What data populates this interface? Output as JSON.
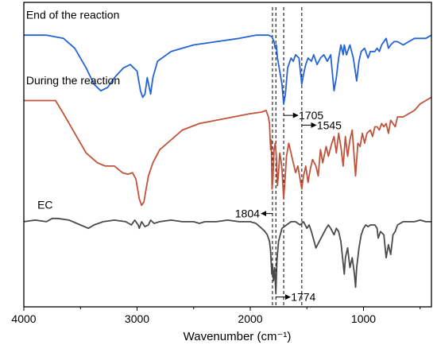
{
  "chart_data": {
    "type": "line",
    "title": "",
    "xlabel": "Wavenumber (cm⁻¹)",
    "ylabel": "",
    "xlim": [
      4000,
      400
    ],
    "x_reversed": true,
    "x_ticks": [
      4000,
      3000,
      2000,
      1000
    ],
    "x_tick_labels": [
      "4000",
      "3000",
      "2000",
      "1000"
    ],
    "grid": false,
    "y_axis_shown": false,
    "legend": "none",
    "series": [
      {
        "name": "End of the reaction",
        "color": "#2563d6",
        "points": [
          [
            4000,
            83
          ],
          [
            3800,
            83
          ],
          [
            3650,
            82
          ],
          [
            3550,
            79
          ],
          [
            3450,
            73
          ],
          [
            3380,
            68
          ],
          [
            3320,
            66
          ],
          [
            3260,
            67
          ],
          [
            3200,
            70
          ],
          [
            3120,
            73
          ],
          [
            3060,
            74
          ],
          [
            3000,
            72
          ],
          [
            2970,
            66
          ],
          [
            2950,
            64
          ],
          [
            2930,
            65
          ],
          [
            2910,
            70
          ],
          [
            2880,
            65
          ],
          [
            2860,
            70
          ],
          [
            2820,
            75
          ],
          [
            2700,
            78
          ],
          [
            2500,
            80
          ],
          [
            2300,
            81
          ],
          [
            2100,
            82
          ],
          [
            1950,
            83
          ],
          [
            1840,
            83
          ],
          [
            1810,
            82.5
          ],
          [
            1790,
            81
          ],
          [
            1780,
            79
          ],
          [
            1770,
            80
          ],
          [
            1760,
            76
          ],
          [
            1740,
            72
          ],
          [
            1720,
            68
          ],
          [
            1705,
            62
          ],
          [
            1690,
            65
          ],
          [
            1670,
            73
          ],
          [
            1640,
            76
          ],
          [
            1620,
            75
          ],
          [
            1600,
            77
          ],
          [
            1570,
            76
          ],
          [
            1545,
            68
          ],
          [
            1530,
            71
          ],
          [
            1510,
            74
          ],
          [
            1490,
            76
          ],
          [
            1460,
            75
          ],
          [
            1440,
            77
          ],
          [
            1410,
            74
          ],
          [
            1380,
            76
          ],
          [
            1350,
            77
          ],
          [
            1320,
            75
          ],
          [
            1290,
            77
          ],
          [
            1260,
            66
          ],
          [
            1240,
            70
          ],
          [
            1220,
            76
          ],
          [
            1200,
            80
          ],
          [
            1180,
            77
          ],
          [
            1170,
            80
          ],
          [
            1150,
            77
          ],
          [
            1120,
            80
          ],
          [
            1090,
            76
          ],
          [
            1060,
            69
          ],
          [
            1040,
            75
          ],
          [
            1020,
            78
          ],
          [
            990,
            79
          ],
          [
            960,
            76
          ],
          [
            940,
            78
          ],
          [
            900,
            78
          ],
          [
            880,
            79
          ],
          [
            860,
            78
          ],
          [
            840,
            80
          ],
          [
            800,
            82
          ],
          [
            780,
            79
          ],
          [
            760,
            80
          ],
          [
            730,
            81
          ],
          [
            700,
            81
          ],
          [
            650,
            80
          ],
          [
            600,
            81
          ],
          [
            550,
            82
          ],
          [
            500,
            82
          ],
          [
            450,
            82
          ],
          [
            400,
            83
          ]
        ]
      },
      {
        "name": "During the reaction",
        "color": "#c0533c",
        "points": [
          [
            4000,
            63
          ],
          [
            3850,
            63
          ],
          [
            3720,
            63
          ],
          [
            3650,
            59
          ],
          [
            3550,
            53
          ],
          [
            3450,
            47
          ],
          [
            3350,
            44
          ],
          [
            3280,
            43
          ],
          [
            3200,
            43
          ],
          [
            3130,
            41
          ],
          [
            3080,
            40.5
          ],
          [
            3040,
            41
          ],
          [
            3010,
            39
          ],
          [
            2980,
            33
          ],
          [
            2960,
            31
          ],
          [
            2940,
            32
          ],
          [
            2920,
            36
          ],
          [
            2900,
            40
          ],
          [
            2860,
            44
          ],
          [
            2800,
            48
          ],
          [
            2700,
            51
          ],
          [
            2600,
            54
          ],
          [
            2450,
            56
          ],
          [
            2300,
            57
          ],
          [
            2150,
            58
          ],
          [
            2000,
            59
          ],
          [
            1900,
            59.5
          ],
          [
            1860,
            60
          ],
          [
            1840,
            58
          ],
          [
            1830,
            56
          ],
          [
            1820,
            48
          ],
          [
            1815,
            51
          ],
          [
            1808,
            36
          ],
          [
            1800,
            39
          ],
          [
            1790,
            48
          ],
          [
            1780,
            50
          ],
          [
            1770,
            46
          ],
          [
            1760,
            37
          ],
          [
            1750,
            41
          ],
          [
            1740,
            47
          ],
          [
            1730,
            45
          ],
          [
            1720,
            42
          ],
          [
            1705,
            33
          ],
          [
            1695,
            38
          ],
          [
            1680,
            46
          ],
          [
            1660,
            50
          ],
          [
            1640,
            47
          ],
          [
            1620,
            44
          ],
          [
            1600,
            41
          ],
          [
            1580,
            43
          ],
          [
            1560,
            39
          ],
          [
            1545,
            36
          ],
          [
            1530,
            40
          ],
          [
            1510,
            43
          ],
          [
            1490,
            38
          ],
          [
            1470,
            42
          ],
          [
            1450,
            45
          ],
          [
            1420,
            43
          ],
          [
            1400,
            40
          ],
          [
            1380,
            48
          ],
          [
            1360,
            44
          ],
          [
            1330,
            49
          ],
          [
            1310,
            46
          ],
          [
            1280,
            50
          ],
          [
            1260,
            52
          ],
          [
            1240,
            47
          ],
          [
            1220,
            53
          ],
          [
            1200,
            49
          ],
          [
            1180,
            43
          ],
          [
            1160,
            52
          ],
          [
            1140,
            46
          ],
          [
            1120,
            51
          ],
          [
            1100,
            54
          ],
          [
            1070,
            40
          ],
          [
            1050,
            50
          ],
          [
            1030,
            49
          ],
          [
            1010,
            53
          ],
          [
            990,
            50
          ],
          [
            970,
            53
          ],
          [
            940,
            54
          ],
          [
            920,
            52
          ],
          [
            900,
            55
          ],
          [
            880,
            55
          ],
          [
            860,
            54
          ],
          [
            840,
            56
          ],
          [
            820,
            55
          ],
          [
            800,
            56
          ],
          [
            780,
            53
          ],
          [
            760,
            57
          ],
          [
            740,
            56
          ],
          [
            720,
            55
          ],
          [
            700,
            58
          ],
          [
            650,
            58
          ],
          [
            600,
            59
          ],
          [
            550,
            60
          ],
          [
            500,
            62
          ],
          [
            450,
            63
          ],
          [
            400,
            64
          ]
        ]
      },
      {
        "name": "EC",
        "color": "#4a4a4a",
        "points": [
          [
            4000,
            26
          ],
          [
            3900,
            26.5
          ],
          [
            3800,
            26
          ],
          [
            3750,
            27
          ],
          [
            3700,
            27
          ],
          [
            3600,
            26.5
          ],
          [
            3500,
            25
          ],
          [
            3430,
            24
          ],
          [
            3380,
            25
          ],
          [
            3300,
            26
          ],
          [
            3200,
            26.5
          ],
          [
            3100,
            26
          ],
          [
            3050,
            25
          ],
          [
            3020,
            26.5
          ],
          [
            2990,
            25
          ],
          [
            2980,
            24
          ],
          [
            2960,
            26
          ],
          [
            2930,
            24.5
          ],
          [
            2900,
            25
          ],
          [
            2880,
            26.5
          ],
          [
            2850,
            25.5
          ],
          [
            2800,
            26
          ],
          [
            2700,
            26.5
          ],
          [
            2600,
            26
          ],
          [
            2500,
            26
          ],
          [
            2450,
            25.5
          ],
          [
            2400,
            26
          ],
          [
            2300,
            26
          ],
          [
            2200,
            26.5
          ],
          [
            2100,
            26
          ],
          [
            2000,
            26
          ],
          [
            1950,
            25.5
          ],
          [
            1900,
            24
          ],
          [
            1870,
            23
          ],
          [
            1850,
            22
          ],
          [
            1830,
            20
          ],
          [
            1820,
            17
          ],
          [
            1810,
            10
          ],
          [
            1804,
            13
          ],
          [
            1795,
            8
          ],
          [
            1785,
            12
          ],
          [
            1774,
            4
          ],
          [
            1765,
            14
          ],
          [
            1750,
            20
          ],
          [
            1720,
            24
          ],
          [
            1680,
            25
          ],
          [
            1640,
            26
          ],
          [
            1600,
            26
          ],
          [
            1560,
            25
          ],
          [
            1530,
            26
          ],
          [
            1500,
            24
          ],
          [
            1480,
            25
          ],
          [
            1460,
            23
          ],
          [
            1420,
            18
          ],
          [
            1390,
            20
          ],
          [
            1360,
            22
          ],
          [
            1330,
            24
          ],
          [
            1310,
            25
          ],
          [
            1290,
            24
          ],
          [
            1260,
            22
          ],
          [
            1240,
            24
          ],
          [
            1220,
            23
          ],
          [
            1200,
            20
          ],
          [
            1170,
            10
          ],
          [
            1160,
            15
          ],
          [
            1140,
            18
          ],
          [
            1120,
            12
          ],
          [
            1100,
            15
          ],
          [
            1080,
            10
          ],
          [
            1070,
            6
          ],
          [
            1060,
            12
          ],
          [
            1040,
            18
          ],
          [
            1020,
            22
          ],
          [
            1000,
            24
          ],
          [
            980,
            25
          ],
          [
            960,
            24.5
          ],
          [
            940,
            25
          ],
          [
            900,
            25
          ],
          [
            880,
            24
          ],
          [
            870,
            21
          ],
          [
            850,
            23
          ],
          [
            820,
            22
          ],
          [
            800,
            15
          ],
          [
            780,
            19
          ],
          [
            760,
            16
          ],
          [
            740,
            22
          ],
          [
            720,
            23
          ],
          [
            700,
            25
          ],
          [
            650,
            26
          ],
          [
            600,
            26
          ],
          [
            550,
            26
          ],
          [
            500,
            26.5
          ],
          [
            450,
            26
          ],
          [
            400,
            26
          ]
        ]
      }
    ],
    "series_labels": [
      {
        "text": "End of the reaction",
        "x": 3980,
        "y": 88
      },
      {
        "text": "During the reaction",
        "x": 3980,
        "y": 68
      },
      {
        "text": "EC",
        "x": 3880,
        "y": 30
      }
    ],
    "reference_lines": [
      1804,
      1774,
      1705,
      1545
    ],
    "annotations": [
      {
        "text": "1705",
        "line": 1705,
        "direction": "right",
        "y": 58.5
      },
      {
        "text": "1545",
        "line": 1545,
        "direction": "right",
        "y": 55.5
      },
      {
        "text": "1804",
        "line": 1804,
        "direction": "left",
        "y": 28.5
      },
      {
        "text": "1774",
        "line": 1774,
        "direction": "right",
        "y": 3
      }
    ]
  }
}
